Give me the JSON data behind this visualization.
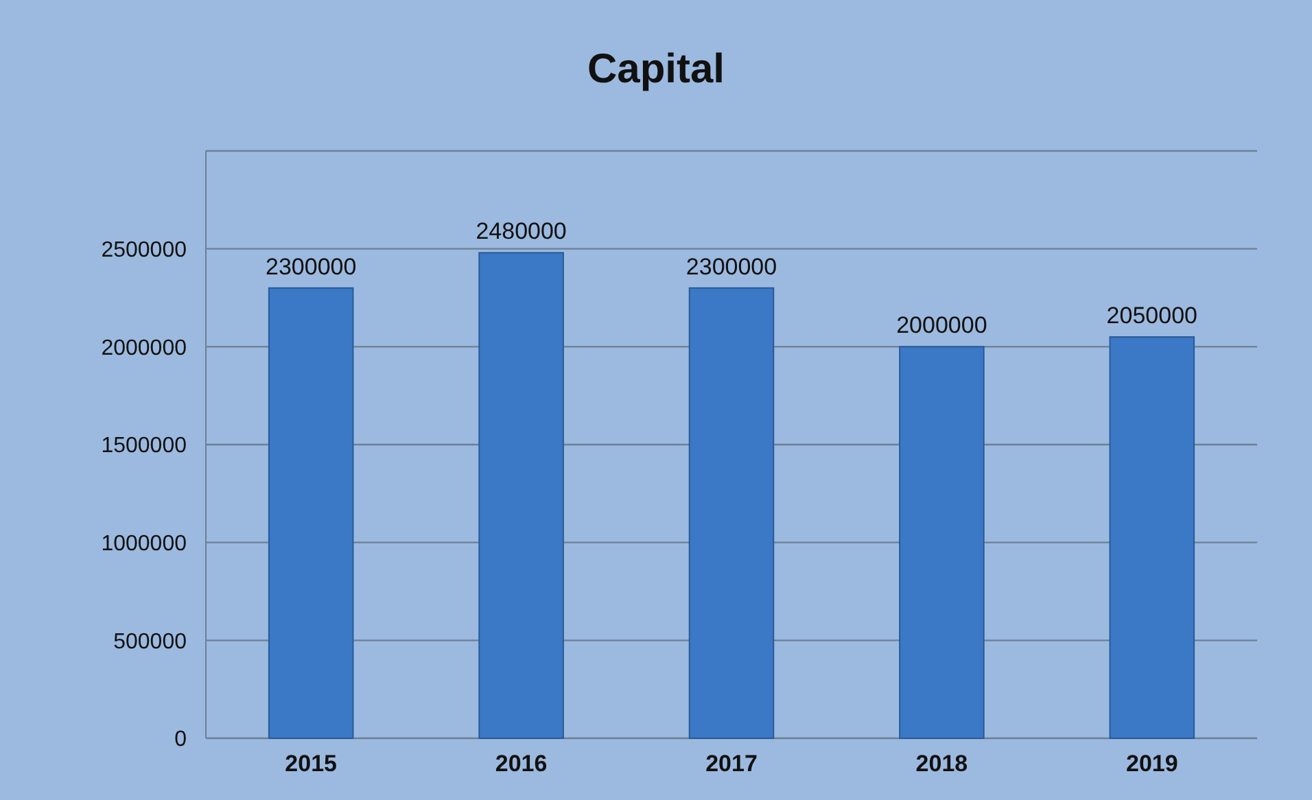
{
  "chart_data": {
    "type": "bar",
    "title": "Capital",
    "categories": [
      "2015",
      "2016",
      "2017",
      "2018",
      "2019"
    ],
    "values": [
      2300000,
      2480000,
      2300000,
      2000000,
      2050000
    ],
    "color": "#3b78c6",
    "ylim": [
      0,
      3000000
    ],
    "yticks": [
      0,
      500000,
      1000000,
      1500000,
      2000000,
      2500000,
      {
        "value": 3000000,
        "label": null
      }
    ],
    "grid": "y",
    "data_labels": true
  }
}
